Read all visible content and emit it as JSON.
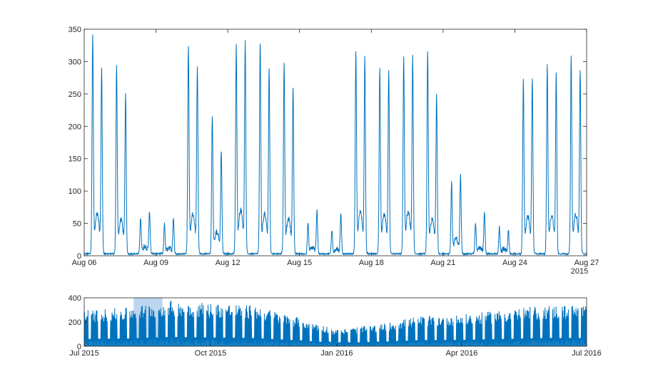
{
  "chart_data": [
    {
      "type": "line",
      "name": "main-plot",
      "title": "",
      "xlabel": "",
      "ylabel": "",
      "x_range": [
        "2015-08-06",
        "2015-08-27"
      ],
      "ylim": [
        0,
        350
      ],
      "yticks": [
        0,
        50,
        100,
        150,
        200,
        250,
        300,
        350
      ],
      "ytick_labels": [
        "0",
        "50",
        "100",
        "150",
        "200",
        "250",
        "300",
        "350"
      ],
      "xticks": [
        "2015-08-06",
        "2015-08-09",
        "2015-08-12",
        "2015-08-15",
        "2015-08-18",
        "2015-08-21",
        "2015-08-24",
        "2015-08-27"
      ],
      "xtick_labels": [
        "Aug 06",
        "Aug 09",
        "Aug 12",
        "Aug 15",
        "Aug 18",
        "Aug 21",
        "Aug 24",
        "Aug 27"
      ],
      "year_label": "2015",
      "series_color": "#0072BD",
      "daily_peaks": [
        {
          "date": "2015-08-06",
          "peak1": 330,
          "peak2": 280
        },
        {
          "date": "2015-08-07",
          "peak1": 285,
          "peak2": 240
        },
        {
          "date": "2015-08-08",
          "peak1": 55,
          "peak2": 65
        },
        {
          "date": "2015-08-09",
          "peak1": 45,
          "peak2": 55
        },
        {
          "date": "2015-08-10",
          "peak1": 315,
          "peak2": 282
        },
        {
          "date": "2015-08-11",
          "peak1": 208,
          "peak2": 155
        },
        {
          "date": "2015-08-12",
          "peak1": 312,
          "peak2": 318
        },
        {
          "date": "2015-08-13",
          "peak1": 318,
          "peak2": 278
        },
        {
          "date": "2015-08-14",
          "peak1": 286,
          "peak2": 250
        },
        {
          "date": "2015-08-15",
          "peak1": 45,
          "peak2": 65
        },
        {
          "date": "2015-08-16",
          "peak1": 35,
          "peak2": 60
        },
        {
          "date": "2015-08-17",
          "peak1": 302,
          "peak2": 295
        },
        {
          "date": "2015-08-18",
          "peak1": 279,
          "peak2": 274
        },
        {
          "date": "2015-08-19",
          "peak1": 295,
          "peak2": 297
        },
        {
          "date": "2015-08-20",
          "peak1": 304,
          "peak2": 240
        },
        {
          "date": "2015-08-21",
          "peak1": 108,
          "peak2": 118
        },
        {
          "date": "2015-08-22",
          "peak1": 45,
          "peak2": 62
        },
        {
          "date": "2015-08-23",
          "peak1": 40,
          "peak2": 35
        },
        {
          "date": "2015-08-24",
          "peak1": 262,
          "peak2": 265
        },
        {
          "date": "2015-08-25",
          "peak1": 284,
          "peak2": 271
        },
        {
          "date": "2015-08-26",
          "peak1": 296,
          "peak2": 277
        }
      ]
    },
    {
      "type": "area",
      "name": "overview-plot",
      "title": "",
      "xlabel": "",
      "ylabel": "",
      "x_range": [
        "2015-07-01",
        "2016-07-01"
      ],
      "ylim": [
        0,
        400
      ],
      "yticks": [
        0,
        200,
        400
      ],
      "ytick_labels": [
        "0",
        "200",
        "400"
      ],
      "xticks": [
        "2015-07-01",
        "2015-10-01",
        "2016-01-01",
        "2016-04-01",
        "2016-07-01"
      ],
      "xtick_labels": [
        "Jul 2015",
        "Oct 2015",
        "Jan 2016",
        "Apr 2016",
        "Jul 2016"
      ],
      "selection_range": [
        "2015-08-06",
        "2015-08-27"
      ],
      "selection_color": "#77AEDD",
      "series_color": "#0072BD",
      "weekly_level": [
        {
          "week_start": "2015-07-01",
          "peak": 300
        },
        {
          "week_start": "2015-08-01",
          "peak": 320
        },
        {
          "week_start": "2015-09-01",
          "peak": 380
        },
        {
          "week_start": "2015-10-01",
          "peak": 360
        },
        {
          "week_start": "2015-11-01",
          "peak": 340
        },
        {
          "week_start": "2015-12-01",
          "peak": 250
        },
        {
          "week_start": "2016-01-01",
          "peak": 140
        },
        {
          "week_start": "2016-02-01",
          "peak": 180
        },
        {
          "week_start": "2016-03-01",
          "peak": 250
        },
        {
          "week_start": "2016-04-01",
          "peak": 260
        },
        {
          "week_start": "2016-05-01",
          "peak": 300
        },
        {
          "week_start": "2016-06-01",
          "peak": 340
        }
      ]
    }
  ]
}
